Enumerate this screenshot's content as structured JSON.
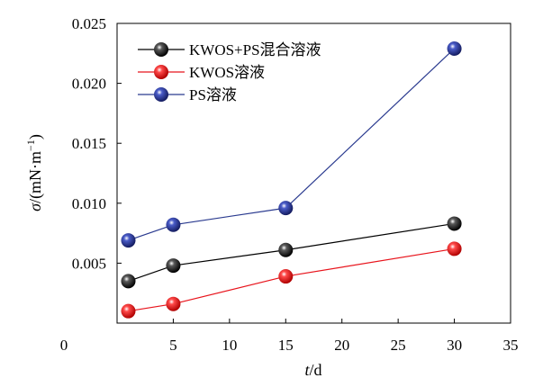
{
  "chart_data": {
    "type": "line",
    "x_axis": {
      "label_italic": "t",
      "label_rest": "/d",
      "range": [
        0,
        35
      ],
      "ticks": [
        0,
        5,
        10,
        15,
        20,
        25,
        30,
        35
      ],
      "tick_labels": [
        "0",
        "5",
        "10",
        "15",
        "20",
        "25",
        "30",
        "35"
      ]
    },
    "y_axis": {
      "label_italic": "σ",
      "label_rest": "/(mN·m",
      "label_sup": "−1",
      "label_close": ")",
      "range": [
        0,
        0.025
      ],
      "ticks": [
        0.005,
        0.01,
        0.015,
        0.02,
        0.025
      ],
      "tick_labels": [
        "0.005",
        "0.010",
        "0.015",
        "0.020",
        "0.025"
      ]
    },
    "grid": false,
    "legend_position": "top-left",
    "series": [
      {
        "name": "KWOS+PS混合溶液",
        "color": "#000000",
        "marker_color": "#1a1a1a",
        "x": [
          1,
          5,
          15,
          30
        ],
        "y": [
          0.0035,
          0.0048,
          0.0061,
          0.0083
        ]
      },
      {
        "name": "KWOS溶液",
        "color": "#e8141c",
        "marker_color": "#e8141c",
        "x": [
          1,
          5,
          15,
          30
        ],
        "y": [
          0.001,
          0.0016,
          0.0039,
          0.0062
        ]
      },
      {
        "name": "PS溶液",
        "color": "#2a3a8f",
        "marker_color": "#2d3fa6",
        "x": [
          1,
          5,
          15,
          30
        ],
        "y": [
          0.0069,
          0.0082,
          0.0096,
          0.0229
        ]
      }
    ]
  }
}
